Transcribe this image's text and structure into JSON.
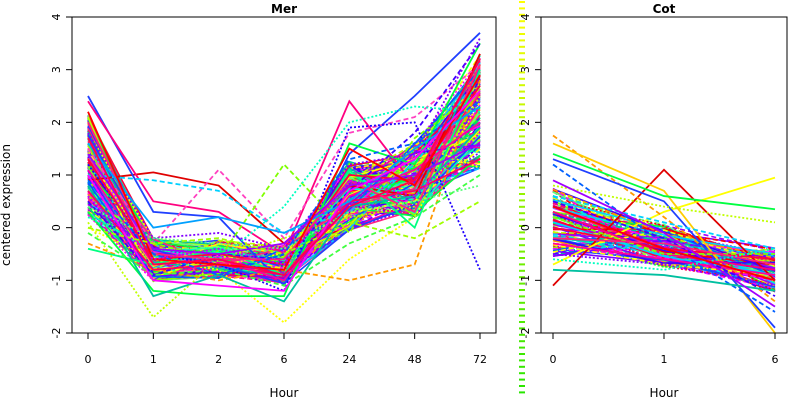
{
  "chart_data": {
    "type": "line",
    "ylabel": "centered expression",
    "ylim": [
      -2,
      4
    ],
    "yticks": [
      -2,
      -1,
      0,
      1,
      2,
      3,
      4
    ],
    "panels": [
      {
        "title": "Mer",
        "xlabel": "Hour",
        "categories": [
          "0",
          "1",
          "2",
          "6",
          "24",
          "48",
          "72"
        ],
        "ylim": [
          -2,
          4
        ],
        "series_count_approx": 300,
        "series": [
          {
            "values": [
              0.9,
              1.05,
              0.8,
              -0.3,
              0.8,
              0.6,
              3.3
            ],
            "color": "#e00000",
            "dash": "solid"
          },
          {
            "values": [
              2.5,
              0.3,
              0.2,
              -1.1,
              1.4,
              2.5,
              3.7
            ],
            "color": "#2040ff",
            "dash": "solid"
          },
          {
            "values": [
              2.4,
              0.5,
              0.3,
              -0.5,
              2.4,
              0.8,
              3.2
            ],
            "color": "#ff0080",
            "dash": "solid"
          },
          {
            "values": [
              1.5,
              -0.3,
              1.1,
              -0.2,
              1.8,
              2.1,
              3.1
            ],
            "color": "#ff40c0",
            "dash": "dashed"
          },
          {
            "values": [
              0.6,
              -0.3,
              -0.6,
              1.2,
              -0.1,
              1.7,
              2.6
            ],
            "color": "#80ff00",
            "dash": "dashed"
          },
          {
            "values": [
              0.1,
              -1.7,
              -0.6,
              -0.2,
              0.2,
              0.4,
              2.5
            ],
            "color": "#c0ff00",
            "dash": "dotted"
          },
          {
            "values": [
              0.0,
              -0.6,
              -0.8,
              -1.8,
              -0.6,
              0.2,
              2.4
            ],
            "color": "#ffff00",
            "dash": "dotted"
          },
          {
            "values": [
              -0.3,
              -0.8,
              -1.0,
              -0.8,
              -1.0,
              -0.7,
              2.8
            ],
            "color": "#ff9900",
            "dash": "dashed"
          },
          {
            "values": [
              1.0,
              0.9,
              0.7,
              -0.1,
              0.3,
              1.2,
              2.9
            ],
            "color": "#00d0ff",
            "dash": "dashed"
          },
          {
            "values": [
              -0.4,
              -0.7,
              -0.4,
              -0.9,
              1.1,
              0.0,
              3.0
            ],
            "color": "#00ff80",
            "dash": "solid"
          },
          {
            "values": [
              0.3,
              -1.2,
              -1.3,
              -1.3,
              1.6,
              1.2,
              3.5
            ],
            "color": "#00ff40",
            "dash": "solid"
          },
          {
            "values": [
              0.8,
              -1.3,
              -0.9,
              -1.4,
              0.4,
              0.6,
              1.9
            ],
            "color": "#00c0a0",
            "dash": "solid"
          },
          {
            "values": [
              1.2,
              -0.5,
              -0.7,
              -1.2,
              1.9,
              2.0,
              -0.8
            ],
            "color": "#2000ff",
            "dash": "dotted"
          },
          {
            "values": [
              0.5,
              -0.9,
              -0.5,
              -0.6,
              0.7,
              1.8,
              3.5
            ],
            "color": "#4000ff",
            "dash": "dashed"
          },
          {
            "values": [
              1.8,
              -0.2,
              -0.1,
              -0.4,
              1.2,
              1.4,
              3.6
            ],
            "color": "#8000ff",
            "dash": "dotted"
          },
          {
            "values": [
              0.2,
              -0.4,
              -0.6,
              0.4,
              2.0,
              2.3,
              2.2
            ],
            "color": "#00ffc0",
            "dash": "dotted"
          },
          {
            "values": [
              1.3,
              -0.6,
              -0.5,
              -0.7,
              1.0,
              0.9,
              2.7
            ],
            "color": "#ff0040",
            "dash": "solid"
          },
          {
            "values": [
              0.7,
              -0.8,
              -0.7,
              -0.9,
              0.5,
              0.7,
              1.3
            ],
            "color": "#ff0060",
            "dash": "solid"
          },
          {
            "values": [
              2.0,
              -0.5,
              -0.6,
              -0.6,
              0.9,
              0.3,
              3.1
            ],
            "color": "#ff2080",
            "dash": "solid"
          },
          {
            "values": [
              1.1,
              -0.7,
              -0.6,
              -1.0,
              0.6,
              1.1,
              2.0
            ],
            "color": "#ff00a0",
            "dash": "solid"
          },
          {
            "values": [
              -0.1,
              -0.9,
              -0.8,
              -1.1,
              -0.3,
              0.2,
              1.0
            ],
            "color": "#40ff40",
            "dash": "dashed"
          },
          {
            "values": [
              0.4,
              -0.2,
              -0.3,
              -0.4,
              0.3,
              0.5,
              0.8
            ],
            "color": "#60ff80",
            "dash": "dotted"
          },
          {
            "values": [
              1.6,
              0.0,
              0.2,
              -0.1,
              0.5,
              1.5,
              2.3
            ],
            "color": "#00a0ff",
            "dash": "solid"
          },
          {
            "values": [
              0.9,
              -0.5,
              -0.9,
              -0.5,
              1.3,
              1.6,
              2.4
            ],
            "color": "#0060ff",
            "dash": "dashed"
          },
          {
            "values": [
              1.4,
              -0.4,
              -0.5,
              -0.3,
              0.8,
              1.0,
              1.6
            ],
            "color": "#a000ff",
            "dash": "solid"
          },
          {
            "values": [
              2.2,
              -0.6,
              -0.7,
              -0.8,
              1.5,
              0.8,
              2.9
            ],
            "color": "#ff0000",
            "dash": "solid"
          },
          {
            "values": [
              0.0,
              -0.3,
              -0.2,
              -0.5,
              0.1,
              -0.2,
              0.5
            ],
            "color": "#a0ff00",
            "dash": "dashed"
          },
          {
            "values": [
              1.0,
              -1.0,
              -1.1,
              -1.2,
              0.7,
              1.3,
              2.6
            ],
            "color": "#ff00ff",
            "dash": "solid"
          },
          {
            "values": [
              0.6,
              -0.6,
              -0.4,
              -0.7,
              0.9,
              0.6,
              1.8
            ],
            "color": "#c000ff",
            "dash": "dotted"
          },
          {
            "values": [
              1.7,
              -0.7,
              -0.6,
              -0.9,
              0.4,
              0.9,
              3.2
            ],
            "color": "#ff0050",
            "dash": "solid"
          }
        ]
      },
      {
        "title": "Cot",
        "xlabel": "Hour",
        "categories": [
          "0",
          "1",
          "6"
        ],
        "ylim": [
          -2,
          4
        ],
        "series_count_approx": 150,
        "series": [
          {
            "values": [
              -1.1,
              1.1,
              -1.0
            ],
            "color": "#e00000",
            "dash": "solid"
          },
          {
            "values": [
              -0.7,
              0.3,
              0.95
            ],
            "color": "#ffff00",
            "dash": "solid"
          },
          {
            "values": [
              1.75,
              0.2,
              -1.4
            ],
            "color": "#ff9900",
            "dash": "dashed"
          },
          {
            "values": [
              1.6,
              0.7,
              -2.0
            ],
            "color": "#ffcc00",
            "dash": "solid"
          },
          {
            "values": [
              1.4,
              0.6,
              0.35
            ],
            "color": "#00ff40",
            "dash": "solid"
          },
          {
            "values": [
              1.3,
              0.5,
              -1.9
            ],
            "color": "#2040ff",
            "dash": "solid"
          },
          {
            "values": [
              0.6,
              0.1,
              -0.4
            ],
            "color": "#00d0ff",
            "dash": "dashed"
          },
          {
            "values": [
              0.8,
              0.4,
              0.1
            ],
            "color": "#c0ff00",
            "dash": "dotted"
          },
          {
            "values": [
              1.2,
              -0.3,
              -1.6
            ],
            "color": "#0060ff",
            "dash": "dashed"
          },
          {
            "values": [
              0.3,
              -0.5,
              -0.8
            ],
            "color": "#ff0080",
            "dash": "solid"
          },
          {
            "values": [
              0.0,
              -0.4,
              -0.6
            ],
            "color": "#ff0040",
            "dash": "solid"
          },
          {
            "values": [
              -0.3,
              -0.6,
              -0.9
            ],
            "color": "#ff00a0",
            "dash": "solid"
          },
          {
            "values": [
              -0.5,
              -0.7,
              -1.1
            ],
            "color": "#8000ff",
            "dash": "dotted"
          },
          {
            "values": [
              0.5,
              -0.2,
              -1.3
            ],
            "color": "#4000ff",
            "dash": "dashed"
          },
          {
            "values": [
              -0.8,
              -0.9,
              -1.2
            ],
            "color": "#00c0a0",
            "dash": "solid"
          },
          {
            "values": [
              0.2,
              -0.5,
              -0.5
            ],
            "color": "#80ff00",
            "dash": "dashed"
          },
          {
            "values": [
              -0.2,
              -0.3,
              -0.7
            ],
            "color": "#ff2080",
            "dash": "solid"
          },
          {
            "values": [
              0.9,
              -0.1,
              -1.5
            ],
            "color": "#a000ff",
            "dash": "solid"
          },
          {
            "values": [
              -0.6,
              -0.8,
              -0.4
            ],
            "color": "#00ffc0",
            "dash": "dotted"
          },
          {
            "values": [
              0.4,
              -0.4,
              -1.0
            ],
            "color": "#ff0000",
            "dash": "solid"
          }
        ]
      }
    ]
  }
}
